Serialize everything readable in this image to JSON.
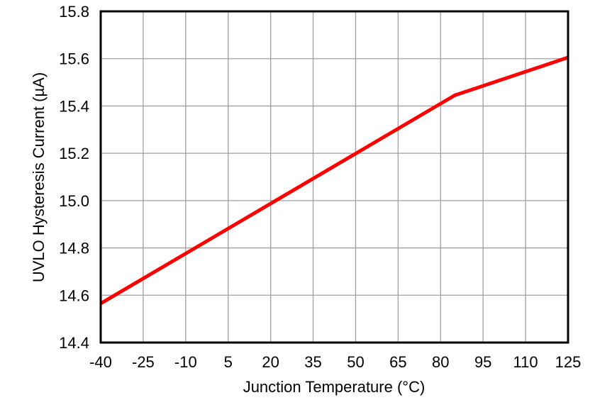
{
  "chart_data": {
    "type": "line",
    "title": "",
    "xlabel": "Junction Temperature (°C)",
    "ylabel": "UVLO Hysteresis Current (µA)",
    "xlim": [
      -40,
      125
    ],
    "ylim": [
      14.4,
      15.8
    ],
    "x_ticks": [
      "-40",
      "-25",
      "-10",
      "5",
      "20",
      "35",
      "50",
      "65",
      "80",
      "95",
      "110",
      "125"
    ],
    "y_ticks": [
      "14.4",
      "14.6",
      "14.8",
      "15.0",
      "15.2",
      "15.4",
      "15.6",
      "15.8"
    ],
    "grid": true,
    "legend": null,
    "series": [
      {
        "name": "UVLO Hysteresis Current",
        "color": "#ff0000",
        "x": [
          -40,
          85,
          125
        ],
        "y": [
          14.565,
          15.445,
          15.605
        ]
      }
    ]
  }
}
